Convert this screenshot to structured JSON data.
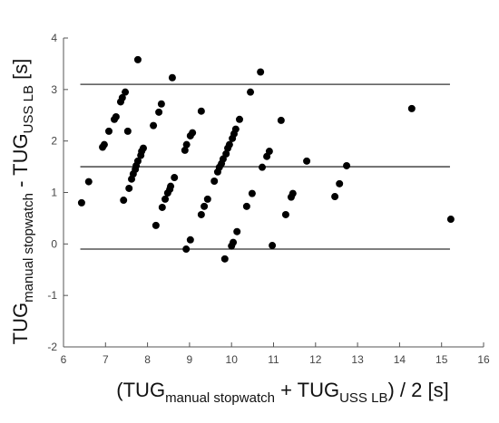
{
  "chart_data": {
    "type": "scatter",
    "xlabel": [
      {
        "text": "(TUG"
      },
      {
        "text": "manual stopwatch",
        "sub": true
      },
      {
        "text": " + TUG"
      },
      {
        "text": "USS LB",
        "sub": true
      },
      {
        "text": ") / 2 [s]"
      }
    ],
    "ylabel": [
      {
        "text": "TUG"
      },
      {
        "text": "manual stopwatch",
        "sub": true
      },
      {
        "text": " - TUG"
      },
      {
        "text": "USS LB",
        "sub": true
      },
      {
        "text": " [s]"
      }
    ],
    "xlim": [
      6,
      16
    ],
    "xticks": [
      6,
      7,
      8,
      9,
      10,
      11,
      12,
      13,
      14,
      15,
      16
    ],
    "ylim": [
      -2,
      4
    ],
    "yticks": [
      -2,
      -1,
      0,
      1,
      2,
      3,
      4
    ],
    "color": "#000000",
    "line_color": "#333333",
    "hlines": [
      3.1,
      1.5,
      -0.1
    ],
    "hline_xlim": [
      6.4,
      15.2
    ],
    "x": [
      6.43,
      6.6,
      6.93,
      6.97,
      7.08,
      7.21,
      7.25,
      7.36,
      7.4,
      7.47,
      7.43,
      7.56,
      7.62,
      7.66,
      7.71,
      7.73,
      7.77,
      7.84,
      7.86,
      7.9,
      7.53,
      7.77,
      8.14,
      8.27,
      8.33,
      8.2,
      8.35,
      8.42,
      8.48,
      8.53,
      8.55,
      8.64,
      8.59,
      8.89,
      8.93,
      9.02,
      9.07,
      9.28,
      8.92,
      9.02,
      9.28,
      9.35,
      9.43,
      9.59,
      9.67,
      9.71,
      9.76,
      9.8,
      9.87,
      9.91,
      9.95,
      10.02,
      10.06,
      10.1,
      10.19,
      9.84,
      10.0,
      10.04,
      10.13,
      10.36,
      10.49,
      10.45,
      10.69,
      10.73,
      10.84,
      10.9,
      10.97,
      11.18,
      11.29,
      11.42,
      11.46,
      11.79,
      12.46,
      12.57,
      12.74,
      14.29,
      15.22
    ],
    "y": [
      0.8,
      1.21,
      1.88,
      1.93,
      2.19,
      2.42,
      2.47,
      2.76,
      2.84,
      2.95,
      0.85,
      1.08,
      1.26,
      1.36,
      1.45,
      1.52,
      1.61,
      1.72,
      1.8,
      1.86,
      2.19,
      3.58,
      2.3,
      2.56,
      2.72,
      0.36,
      0.71,
      0.87,
      0.99,
      1.06,
      1.12,
      1.29,
      3.23,
      1.82,
      1.93,
      2.1,
      2.16,
      2.58,
      -0.1,
      0.08,
      0.57,
      0.73,
      0.87,
      1.22,
      1.4,
      1.49,
      1.56,
      1.65,
      1.75,
      1.86,
      1.93,
      2.05,
      2.14,
      2.23,
      2.42,
      -0.29,
      -0.04,
      0.03,
      0.24,
      0.73,
      0.98,
      2.95,
      3.34,
      1.49,
      1.7,
      1.8,
      -0.03,
      2.4,
      0.57,
      0.91,
      0.98,
      1.61,
      0.92,
      1.17,
      1.52,
      2.63,
      0.48
    ]
  }
}
